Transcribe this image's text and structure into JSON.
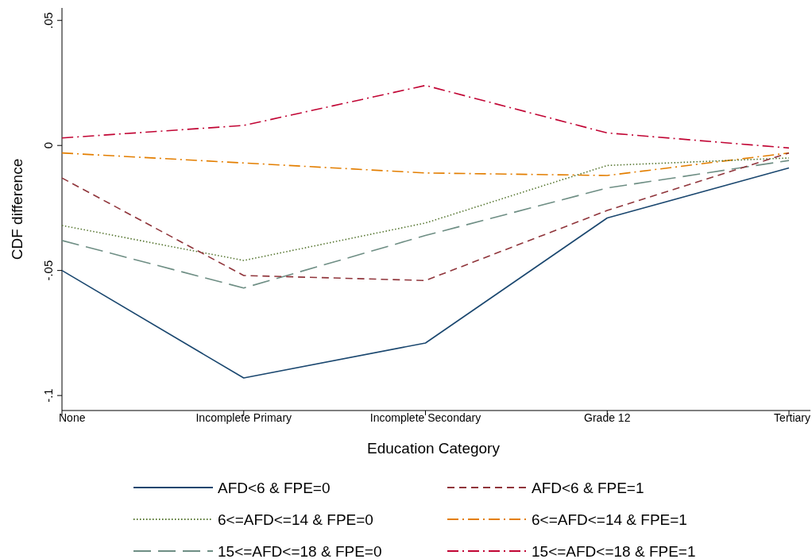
{
  "chart_data": {
    "type": "line",
    "xlabel": "Education Category",
    "ylabel": "CDF difference",
    "categories": [
      "None",
      "Incomplete Primary",
      "Incomplete Secondary",
      "Grade 12",
      "Tertiary"
    ],
    "ylim": [
      -0.106,
      0.055
    ],
    "yticks": [
      {
        "value": -0.1,
        "label": "-.1"
      },
      {
        "value": -0.05,
        "label": "-.05"
      },
      0,
      {
        "value": 0.05,
        "label": ".05"
      }
    ],
    "grid": false,
    "legend": "bottom",
    "marker": "none",
    "series": [
      {
        "name": "AFD<6 & FPE=0",
        "color": "#1a476f",
        "line_style": "solid",
        "values": [
          -0.05,
          -0.093,
          -0.079,
          -0.029,
          -0.009
        ]
      },
      {
        "name": "AFD<6 & FPE=1",
        "color": "#90353b",
        "line_style": "dashed",
        "values": [
          -0.013,
          -0.052,
          -0.054,
          -0.026,
          -0.003
        ]
      },
      {
        "name": "6<=AFD<=14 & FPE=0",
        "color": "#55752f",
        "line_style": "dotted",
        "values": [
          -0.032,
          -0.046,
          -0.031,
          -0.008,
          -0.005
        ]
      },
      {
        "name": "6<=AFD<=14 & FPE=1",
        "color": "#e37e00",
        "line_style": "dashdot",
        "values": [
          -0.003,
          -0.007,
          -0.011,
          -0.012,
          -0.003
        ]
      },
      {
        "name": "15<=AFD<=18 & FPE=0",
        "color": "#6e8e84",
        "line_style": "longdash",
        "values": [
          -0.038,
          -0.057,
          -0.036,
          -0.017,
          -0.006
        ]
      },
      {
        "name": "15<=AFD<=18 & FPE=1",
        "color": "#c10534",
        "line_style": "dashdot",
        "values": [
          0.003,
          0.008,
          0.024,
          0.005,
          -0.001
        ]
      }
    ]
  }
}
